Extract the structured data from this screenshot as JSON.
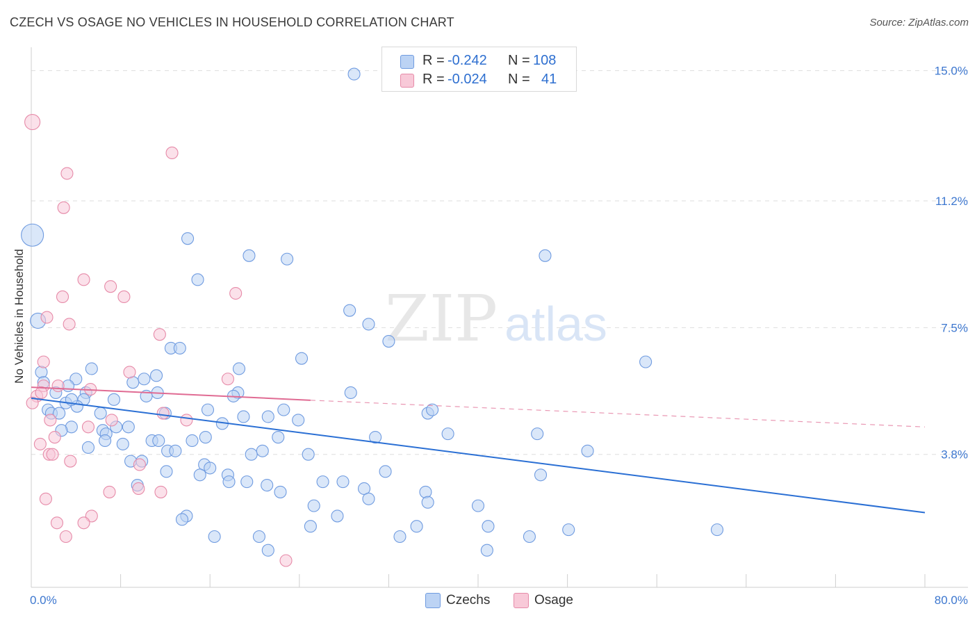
{
  "title": "CZECH VS OSAGE NO VEHICLES IN HOUSEHOLD CORRELATION CHART",
  "source": "Source: ZipAtlas.com",
  "watermark": {
    "zip": "ZIP",
    "atlas": "atlas"
  },
  "stats": {
    "rows": [
      {
        "r_label": "R =",
        "r_value": "-0.242",
        "n_label": "N =",
        "n_value": "108"
      },
      {
        "r_label": "R =",
        "r_value": "-0.024",
        "n_label": "N =",
        "n_value": "41"
      }
    ]
  },
  "legend": {
    "czechs": "Czechs",
    "osage": "Osage"
  },
  "colors": {
    "czech_fill": "#bcd3f4",
    "czech_stroke": "#6f9be0",
    "czech_line": "#2a6fd4",
    "osage_fill": "#f8c9d8",
    "osage_stroke": "#e68aa8",
    "osage_line": "#e06b93",
    "tick_label": "#3d77cf",
    "grid": "#dddddd"
  },
  "chart_data": {
    "type": "scatter",
    "title": "CZECH VS OSAGE NO VEHICLES IN HOUSEHOLD CORRELATION CHART",
    "xlabel": "",
    "ylabel": "No Vehicles in Household",
    "xlim": [
      0,
      80
    ],
    "ylim": [
      0,
      15.5
    ],
    "x_tick_labels": [
      "0.0%",
      "80.0%"
    ],
    "y_ticks": [
      3.8,
      7.5,
      11.2,
      15.0
    ],
    "y_tick_labels": [
      "3.8%",
      "7.5%",
      "11.2%",
      "15.0%"
    ],
    "series": [
      {
        "name": "Czechs",
        "points": [
          {
            "x": 28.9,
            "y": 14.9
          },
          {
            "x": 0.1,
            "y": 10.2,
            "s": 2
          },
          {
            "x": 14.0,
            "y": 10.1
          },
          {
            "x": 19.5,
            "y": 9.6
          },
          {
            "x": 22.9,
            "y": 9.5
          },
          {
            "x": 46.0,
            "y": 9.6
          },
          {
            "x": 14.9,
            "y": 8.9
          },
          {
            "x": 0.6,
            "y": 7.7,
            "s": 1
          },
          {
            "x": 28.5,
            "y": 8.0
          },
          {
            "x": 30.2,
            "y": 7.6
          },
          {
            "x": 32.0,
            "y": 7.1
          },
          {
            "x": 12.5,
            "y": 6.9
          },
          {
            "x": 13.3,
            "y": 6.9
          },
          {
            "x": 24.2,
            "y": 6.6
          },
          {
            "x": 55.0,
            "y": 6.5
          },
          {
            "x": 18.6,
            "y": 6.3
          },
          {
            "x": 5.4,
            "y": 6.3
          },
          {
            "x": 0.9,
            "y": 6.2
          },
          {
            "x": 11.2,
            "y": 6.1
          },
          {
            "x": 4.0,
            "y": 6.0
          },
          {
            "x": 1.1,
            "y": 5.9
          },
          {
            "x": 9.1,
            "y": 5.9
          },
          {
            "x": 3.3,
            "y": 5.8
          },
          {
            "x": 10.1,
            "y": 6.0
          },
          {
            "x": 4.9,
            "y": 5.6
          },
          {
            "x": 11.3,
            "y": 5.6
          },
          {
            "x": 18.5,
            "y": 5.6
          },
          {
            "x": 18.1,
            "y": 5.5
          },
          {
            "x": 28.6,
            "y": 5.6
          },
          {
            "x": 2.2,
            "y": 5.6
          },
          {
            "x": 10.3,
            "y": 5.5
          },
          {
            "x": 7.4,
            "y": 5.4
          },
          {
            "x": 4.7,
            "y": 5.4
          },
          {
            "x": 3.1,
            "y": 5.3
          },
          {
            "x": 4.1,
            "y": 5.2
          },
          {
            "x": 1.5,
            "y": 5.1
          },
          {
            "x": 1.8,
            "y": 5.0
          },
          {
            "x": 2.5,
            "y": 5.0
          },
          {
            "x": 6.2,
            "y": 5.0
          },
          {
            "x": 15.8,
            "y": 5.1
          },
          {
            "x": 12.0,
            "y": 5.0
          },
          {
            "x": 19.0,
            "y": 4.9
          },
          {
            "x": 21.2,
            "y": 4.9
          },
          {
            "x": 22.6,
            "y": 5.1
          },
          {
            "x": 35.5,
            "y": 5.0
          },
          {
            "x": 35.9,
            "y": 5.1
          },
          {
            "x": 23.9,
            "y": 4.8
          },
          {
            "x": 17.1,
            "y": 4.7
          },
          {
            "x": 7.6,
            "y": 4.6
          },
          {
            "x": 3.6,
            "y": 4.6
          },
          {
            "x": 2.7,
            "y": 4.5
          },
          {
            "x": 6.4,
            "y": 4.5
          },
          {
            "x": 6.7,
            "y": 4.4
          },
          {
            "x": 37.3,
            "y": 4.4
          },
          {
            "x": 45.3,
            "y": 4.4
          },
          {
            "x": 22.1,
            "y": 4.3
          },
          {
            "x": 30.8,
            "y": 4.3
          },
          {
            "x": 6.6,
            "y": 4.2
          },
          {
            "x": 10.8,
            "y": 4.2
          },
          {
            "x": 11.4,
            "y": 4.2
          },
          {
            "x": 14.4,
            "y": 4.2
          },
          {
            "x": 15.6,
            "y": 4.3
          },
          {
            "x": 5.1,
            "y": 4.0
          },
          {
            "x": 8.2,
            "y": 4.1
          },
          {
            "x": 12.2,
            "y": 3.9
          },
          {
            "x": 12.9,
            "y": 3.9
          },
          {
            "x": 20.7,
            "y": 3.9
          },
          {
            "x": 19.7,
            "y": 3.8
          },
          {
            "x": 24.8,
            "y": 3.8
          },
          {
            "x": 49.8,
            "y": 3.9
          },
          {
            "x": 8.9,
            "y": 3.6
          },
          {
            "x": 9.9,
            "y": 3.6
          },
          {
            "x": 15.5,
            "y": 3.5
          },
          {
            "x": 16.0,
            "y": 3.4
          },
          {
            "x": 12.1,
            "y": 3.3
          },
          {
            "x": 31.7,
            "y": 3.3
          },
          {
            "x": 15.1,
            "y": 3.2
          },
          {
            "x": 17.6,
            "y": 3.2
          },
          {
            "x": 45.6,
            "y": 3.2
          },
          {
            "x": 17.7,
            "y": 3.0
          },
          {
            "x": 19.3,
            "y": 3.0
          },
          {
            "x": 26.1,
            "y": 3.0
          },
          {
            "x": 27.9,
            "y": 3.0
          },
          {
            "x": 9.5,
            "y": 2.9
          },
          {
            "x": 21.1,
            "y": 2.9
          },
          {
            "x": 29.8,
            "y": 2.8
          },
          {
            "x": 22.3,
            "y": 2.7
          },
          {
            "x": 35.3,
            "y": 2.7
          },
          {
            "x": 30.2,
            "y": 2.5
          },
          {
            "x": 35.5,
            "y": 2.4
          },
          {
            "x": 25.3,
            "y": 2.3
          },
          {
            "x": 40.0,
            "y": 2.3
          },
          {
            "x": 27.4,
            "y": 2.0
          },
          {
            "x": 13.9,
            "y": 2.0
          },
          {
            "x": 13.5,
            "y": 1.9
          },
          {
            "x": 25.0,
            "y": 1.7
          },
          {
            "x": 34.5,
            "y": 1.7
          },
          {
            "x": 40.9,
            "y": 1.7
          },
          {
            "x": 48.1,
            "y": 1.6
          },
          {
            "x": 61.4,
            "y": 1.6
          },
          {
            "x": 16.4,
            "y": 1.4
          },
          {
            "x": 20.4,
            "y": 1.4
          },
          {
            "x": 33.0,
            "y": 1.4
          },
          {
            "x": 44.6,
            "y": 1.4
          },
          {
            "x": 21.2,
            "y": 1.0
          },
          {
            "x": 40.8,
            "y": 1.0
          },
          {
            "x": 8.7,
            "y": 4.6
          },
          {
            "x": 3.6,
            "y": 5.4
          }
        ]
      },
      {
        "name": "Osage",
        "points": [
          {
            "x": 0.1,
            "y": 13.5,
            "s": 1
          },
          {
            "x": 12.6,
            "y": 12.6
          },
          {
            "x": 3.2,
            "y": 12.0
          },
          {
            "x": 2.9,
            "y": 11.0
          },
          {
            "x": 4.7,
            "y": 8.9
          },
          {
            "x": 7.1,
            "y": 8.7
          },
          {
            "x": 18.3,
            "y": 8.5
          },
          {
            "x": 8.3,
            "y": 8.4
          },
          {
            "x": 2.8,
            "y": 8.4
          },
          {
            "x": 1.4,
            "y": 7.8
          },
          {
            "x": 3.4,
            "y": 7.6
          },
          {
            "x": 11.5,
            "y": 7.3
          },
          {
            "x": 1.1,
            "y": 6.5
          },
          {
            "x": 8.8,
            "y": 6.2
          },
          {
            "x": 17.6,
            "y": 6.0
          },
          {
            "x": 1.1,
            "y": 5.8
          },
          {
            "x": 2.4,
            "y": 5.8
          },
          {
            "x": 5.3,
            "y": 5.7
          },
          {
            "x": 0.5,
            "y": 5.5
          },
          {
            "x": 0.1,
            "y": 5.3
          },
          {
            "x": 11.8,
            "y": 5.0
          },
          {
            "x": 13.9,
            "y": 4.8
          },
          {
            "x": 1.7,
            "y": 4.8
          },
          {
            "x": 7.2,
            "y": 4.8
          },
          {
            "x": 5.1,
            "y": 4.6
          },
          {
            "x": 2.1,
            "y": 4.3
          },
          {
            "x": 0.8,
            "y": 4.1
          },
          {
            "x": 1.6,
            "y": 3.8
          },
          {
            "x": 1.9,
            "y": 3.8
          },
          {
            "x": 3.5,
            "y": 3.6
          },
          {
            "x": 9.6,
            "y": 2.8
          },
          {
            "x": 7.0,
            "y": 2.7
          },
          {
            "x": 1.3,
            "y": 2.5
          },
          {
            "x": 5.4,
            "y": 2.0
          },
          {
            "x": 2.3,
            "y": 1.8
          },
          {
            "x": 4.7,
            "y": 1.8
          },
          {
            "x": 3.1,
            "y": 1.4
          },
          {
            "x": 22.8,
            "y": 0.7
          },
          {
            "x": 11.6,
            "y": 2.7
          },
          {
            "x": 9.7,
            "y": 3.5
          },
          {
            "x": 0.9,
            "y": 5.6
          }
        ]
      }
    ],
    "trend_lines": [
      {
        "series": "Czechs",
        "x": [
          0,
          80
        ],
        "y": [
          5.44,
          2.1
        ],
        "style": "solid"
      },
      {
        "series": "Osage",
        "x": [
          0,
          25
        ],
        "y": [
          5.76,
          5.38
        ],
        "style": "solid"
      },
      {
        "series": "Osage",
        "x": [
          25,
          80
        ],
        "y": [
          5.38,
          4.6
        ],
        "style": "dashed"
      }
    ]
  }
}
